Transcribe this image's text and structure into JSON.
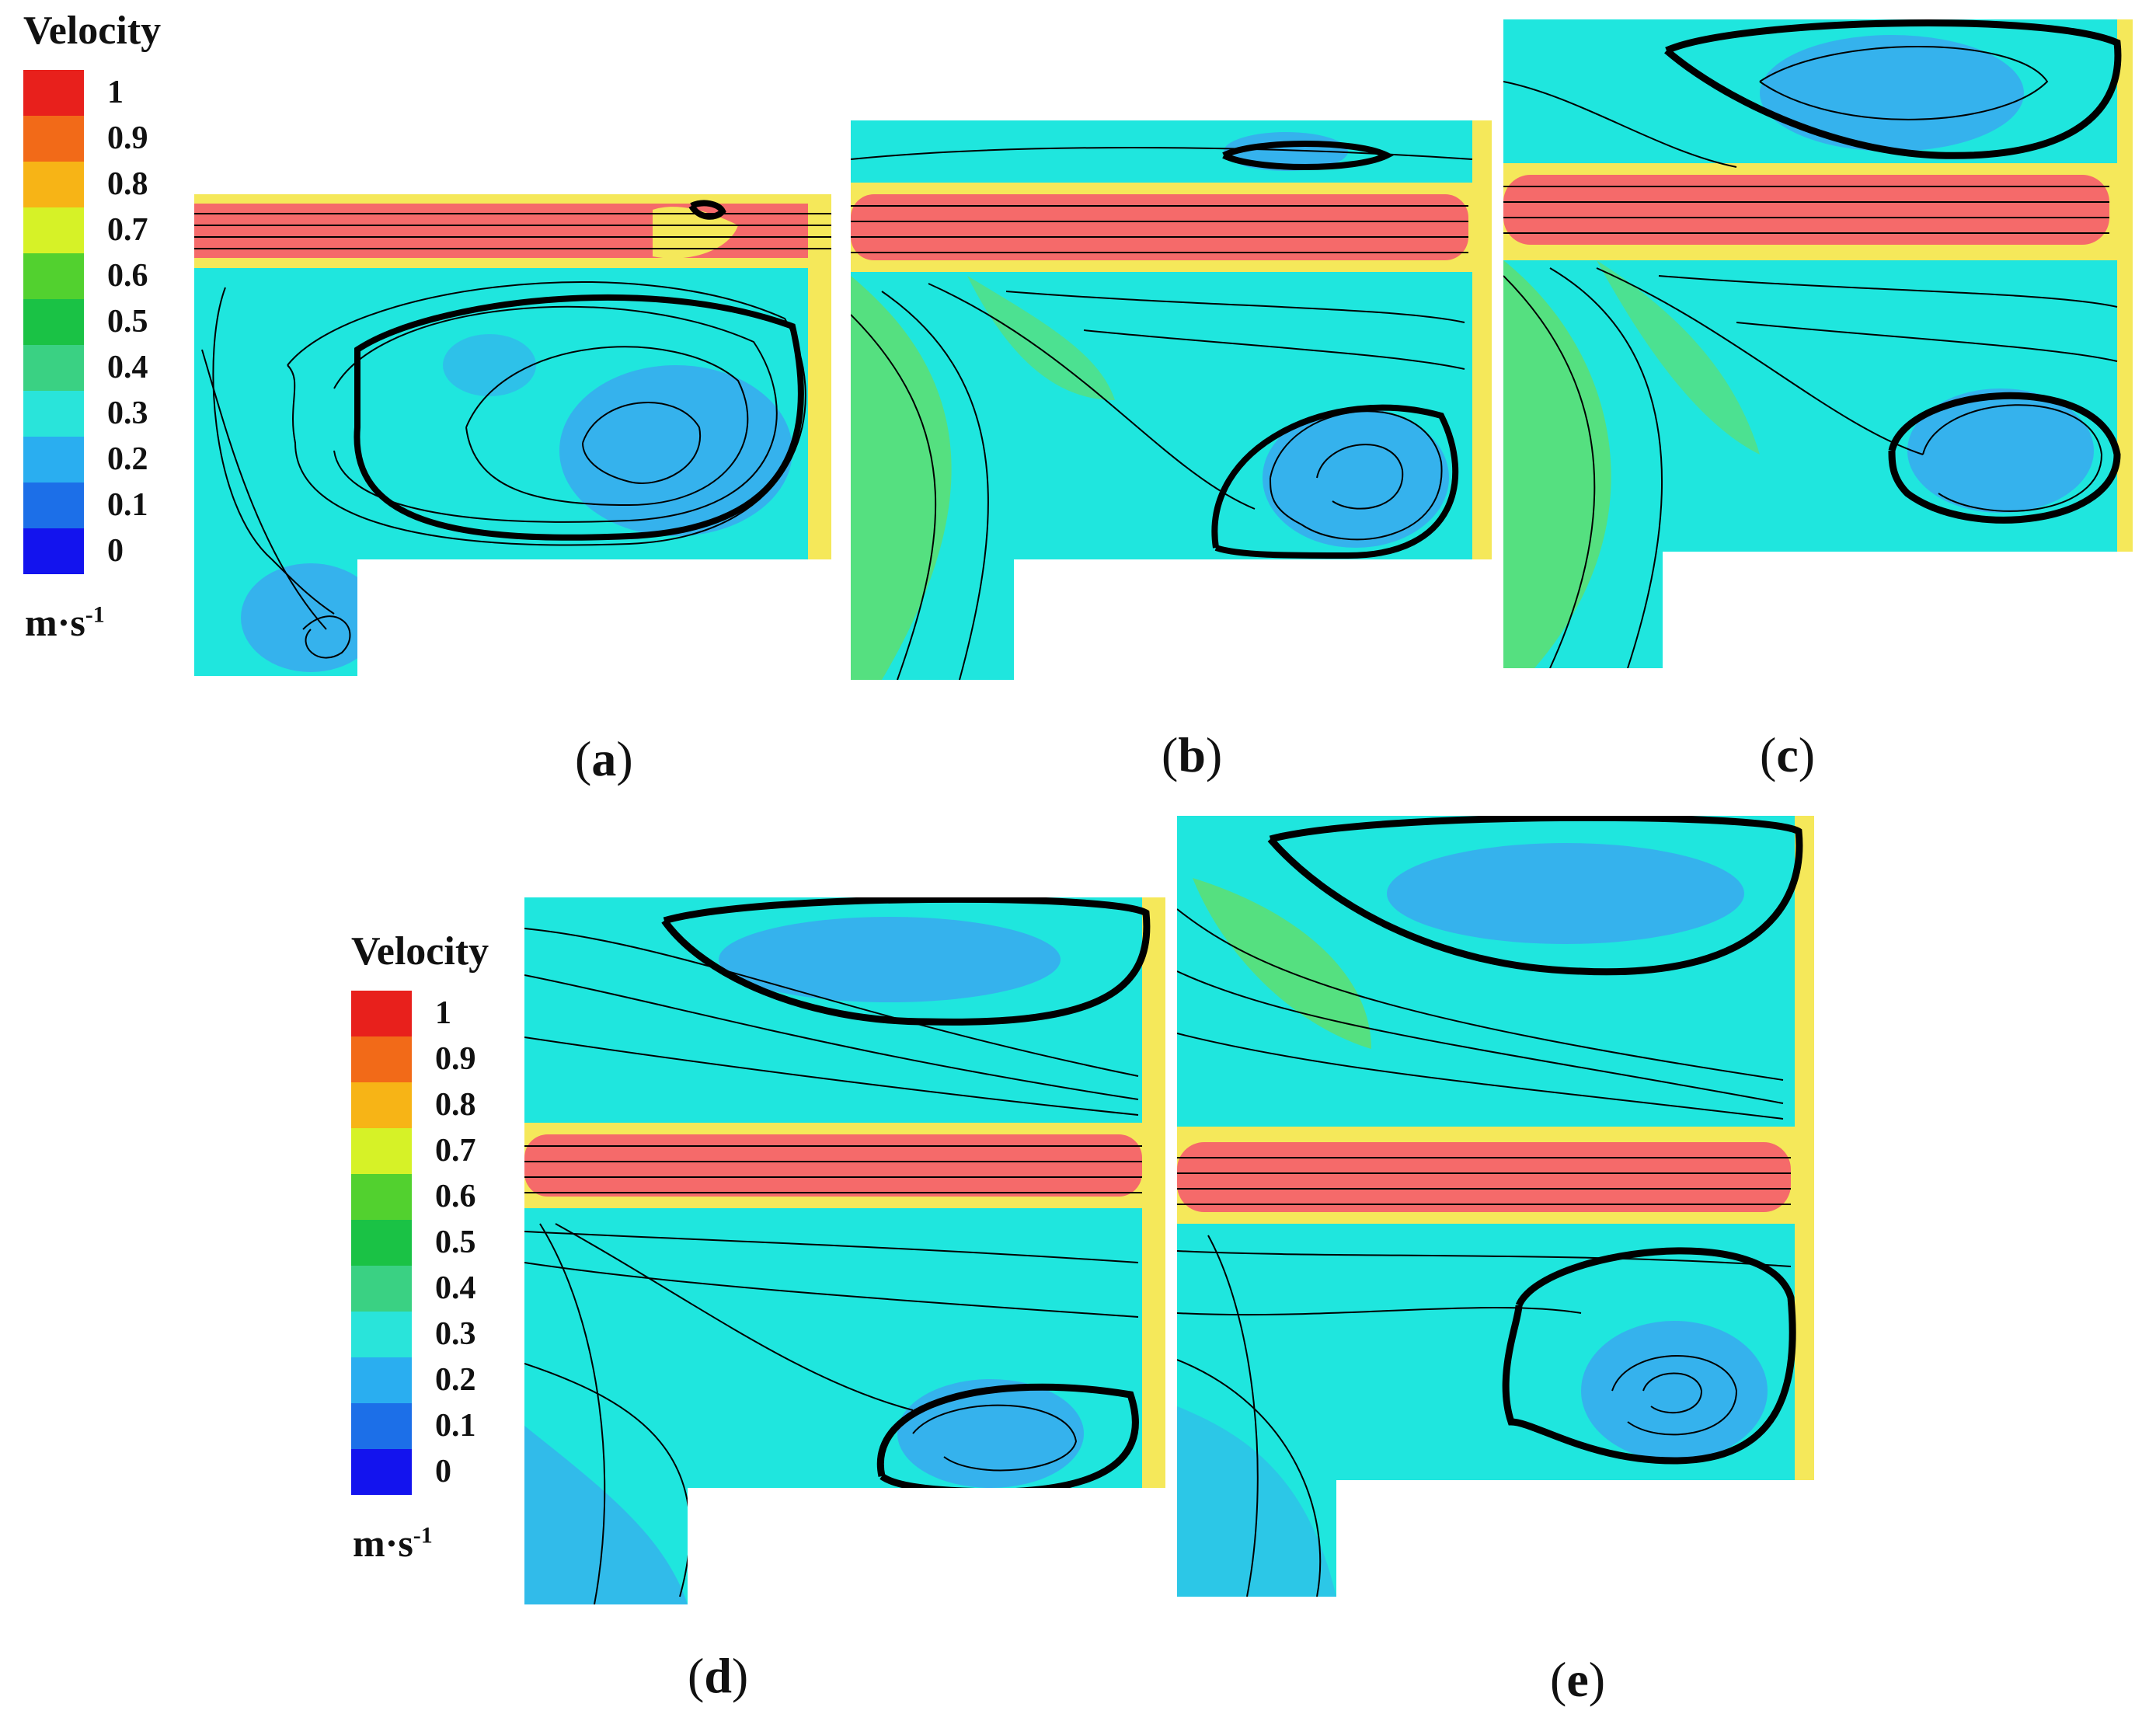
{
  "legend": {
    "title": "Velocity",
    "ticks": [
      "1",
      "0.9",
      "0.8",
      "0.7",
      "0.6",
      "0.5",
      "0.4",
      "0.3",
      "0.2",
      "0.1",
      "0"
    ],
    "unit_base": "m·s",
    "unit_exp": "-1",
    "colors": [
      "#e8201c",
      "#f26a18",
      "#f7b416",
      "#d6f227",
      "#52d12f",
      "#1ac245",
      "#3ad183",
      "#29e4da",
      "#2aaef0",
      "#1c6fe8",
      "#1313ee"
    ]
  },
  "panels": [
    {
      "id": "a",
      "label": "a"
    },
    {
      "id": "b",
      "label": "b"
    },
    {
      "id": "c",
      "label": "c"
    },
    {
      "id": "d",
      "label": "d"
    },
    {
      "id": "e",
      "label": "e"
    }
  ],
  "colors": {
    "field_background": "#1fe6de",
    "jet": "#f56a6a",
    "low_velocity": "#39a8f0",
    "mid_velocity": "#5fde70",
    "high_velocity": "#f5e85a",
    "streamline": "#000000"
  }
}
